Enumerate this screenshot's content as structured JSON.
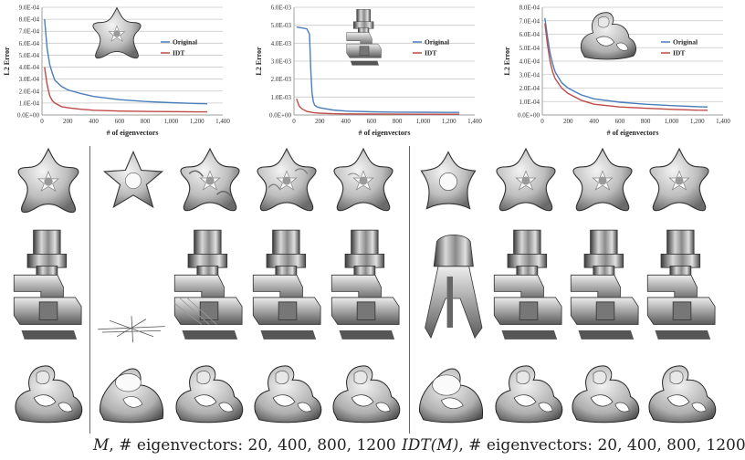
{
  "charts": [
    {
      "type": "line",
      "xlabel": "# of eigenvectors",
      "ylabel": "L2 Error",
      "xlim": [
        0,
        1400
      ],
      "ylim": [
        0,
        0.0009
      ],
      "xticks": [
        "0",
        "200",
        "400",
        "600",
        "800",
        "1,000",
        "1,200",
        "1,400"
      ],
      "yticks": [
        "0.0E+00",
        "1.0E-04",
        "2.0E-04",
        "3.0E-04",
        "4.0E-04",
        "5.0E-04",
        "6.0E-04",
        "7.0E-04",
        "8.0E-04",
        "9.0E-04"
      ],
      "legend_position": "right",
      "series": [
        {
          "name": "Original",
          "color": "#4a7ebb",
          "x": [
            20,
            40,
            60,
            80,
            100,
            150,
            200,
            300,
            400,
            600,
            800,
            1000,
            1200,
            1280
          ],
          "y": [
            0.0008,
            0.00055,
            0.00042,
            0.00035,
            0.00029,
            0.00024,
            0.00021,
            0.00018,
            0.000155,
            0.000128,
            0.000113,
            0.000103,
            9.6e-05,
            9.4e-05
          ]
        },
        {
          "name": "IDT",
          "color": "#be4b48",
          "x": [
            20,
            40,
            60,
            80,
            100,
            150,
            200,
            300,
            400,
            600,
            800,
            1000,
            1200,
            1280
          ],
          "y": [
            0.0004,
            0.00025,
            0.00016,
            0.00012,
            0.0001,
            7e-05,
            6e-05,
            4.8e-05,
            4e-05,
            3.3e-05,
            3e-05,
            2.8e-05,
            2.6e-05,
            2.6e-05
          ]
        }
      ]
    },
    {
      "type": "line",
      "xlabel": "# of eigenvectors",
      "ylabel": "L2 Error",
      "xlim": [
        0,
        1400
      ],
      "ylim": [
        0,
        0.006
      ],
      "xticks": [
        "0",
        "200",
        "400",
        "600",
        "800",
        "1,000",
        "1,200",
        "1,400"
      ],
      "yticks": [
        "0.0E+00",
        "1.0E-03",
        "2.0E-03",
        "3.0E-03",
        "4.0E-03",
        "5.0E-03",
        "6.0E-03"
      ],
      "legend_position": "right",
      "series": [
        {
          "name": "Original",
          "color": "#4a7ebb",
          "x": [
            20,
            60,
            100,
            120,
            130,
            140,
            150,
            160,
            180,
            200,
            300,
            400,
            600,
            800,
            1000,
            1200,
            1280
          ],
          "y": [
            0.0049,
            0.00485,
            0.0048,
            0.0045,
            0.0025,
            0.0012,
            0.00075,
            0.00055,
            0.00045,
            0.0004,
            0.00028,
            0.00022,
            0.00018,
            0.00016,
            0.00015,
            0.00014,
            0.00014
          ]
        },
        {
          "name": "IDT",
          "color": "#be4b48",
          "x": [
            20,
            40,
            60,
            100,
            150,
            200,
            300,
            400,
            600,
            800,
            1000,
            1200,
            1280
          ],
          "y": [
            0.0009,
            0.0005,
            0.00035,
            0.0002,
            0.00013,
            0.0001,
            7e-05,
            6e-05,
            5e-05,
            4.5e-05,
            4e-05,
            4e-05,
            4e-05
          ]
        }
      ]
    },
    {
      "type": "line",
      "xlabel": "# of eigenvectors",
      "ylabel": "L2 Error",
      "xlim": [
        0,
        1400
      ],
      "ylim": [
        0,
        0.0008
      ],
      "xticks": [
        "0",
        "200",
        "400",
        "600",
        "800",
        "1,000",
        "1,200",
        "1,400"
      ],
      "yticks": [
        "0.0E+00",
        "1.0E-04",
        "2.0E-04",
        "3.0E-04",
        "4.0E-04",
        "5.0E-04",
        "6.0E-04",
        "7.0E-04",
        "8.0E-04"
      ],
      "legend_position": "right",
      "series": [
        {
          "name": "Original",
          "color": "#4a7ebb",
          "x": [
            20,
            40,
            60,
            80,
            100,
            150,
            200,
            300,
            400,
            600,
            800,
            1000,
            1200,
            1280
          ],
          "y": [
            0.00072,
            0.00058,
            0.00046,
            0.00038,
            0.00032,
            0.00024,
            0.0002,
            0.00015,
            0.00012,
            9.5e-05,
            8e-05,
            7e-05,
            6.2e-05,
            6e-05
          ]
        },
        {
          "name": "IDT",
          "color": "#be4b48",
          "x": [
            20,
            40,
            60,
            80,
            100,
            150,
            200,
            300,
            400,
            600,
            800,
            1000,
            1200,
            1280
          ],
          "y": [
            0.00068,
            0.00052,
            0.0004,
            0.00032,
            0.00027,
            0.0002,
            0.00016,
            0.00011,
            8e-05,
            6e-05,
            5e-05,
            4.2e-05,
            3.6e-05,
            3.5e-05
          ]
        }
      ]
    }
  ],
  "captions": {
    "left_symbol": "M",
    "left_text": ", # eigenvectors: 20, 400, 800, 1200",
    "right_symbol": "IDT(M)",
    "right_text": ", # eigenvectors: 20, 400, 800, 1200"
  }
}
